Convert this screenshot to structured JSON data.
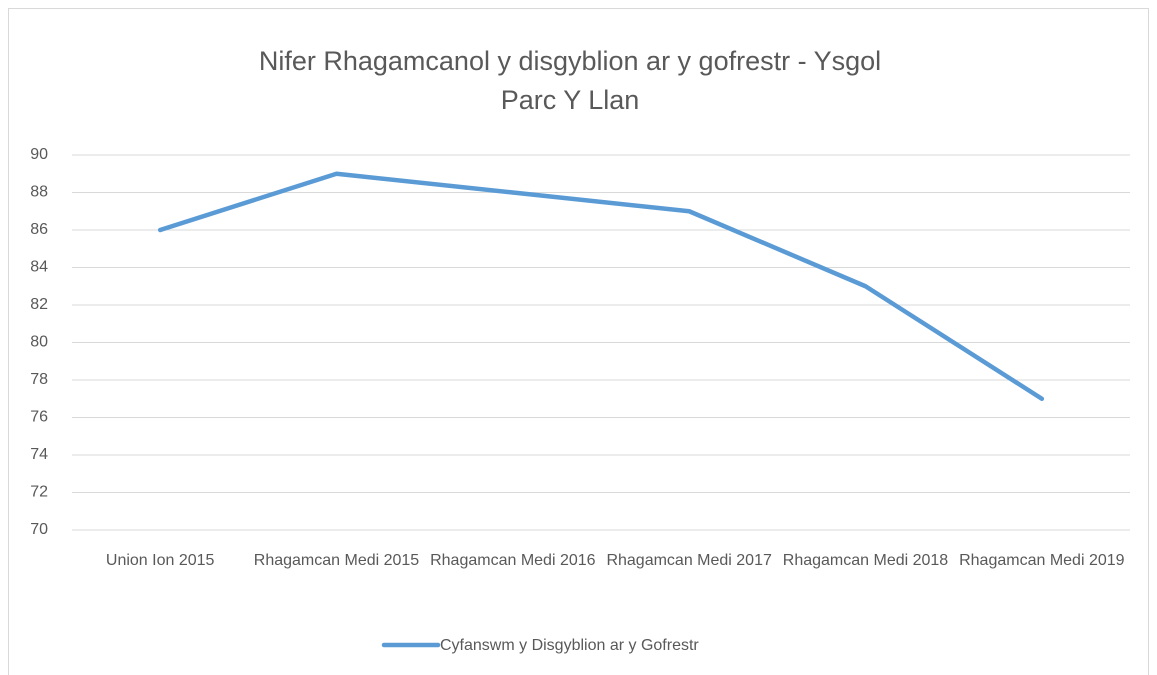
{
  "chart_data": {
    "type": "line",
    "title": "Nifer Rhagamcanol y disgyblion ar y gofrestr - Ysgol Parc Y Llan",
    "categories": [
      "Union Ion 2015",
      "Rhagamcan Medi 2015",
      "Rhagamcan Medi 2016",
      "Rhagamcan Medi 2017",
      "Rhagamcan Medi 2018",
      "Rhagamcan Medi 2019"
    ],
    "series": [
      {
        "name": "Cyfanswm y Disgyblion ar y Gofrestr",
        "color": "#5b9bd5",
        "values": [
          86,
          89,
          88,
          87,
          83,
          77
        ]
      }
    ],
    "ylim": [
      70,
      90
    ],
    "yticks": [
      70,
      72,
      74,
      76,
      78,
      80,
      82,
      84,
      86,
      88,
      90
    ],
    "grid": true,
    "legend": "bottom"
  }
}
